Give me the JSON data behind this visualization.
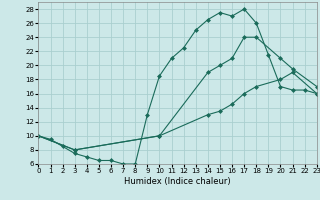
{
  "xlabel": "Humidex (Indice chaleur)",
  "bg_color": "#cce8e8",
  "grid_color": "#aacfcf",
  "line_color": "#1a6b5a",
  "xlim": [
    0,
    23
  ],
  "ylim": [
    6,
    29
  ],
  "xticks": [
    0,
    1,
    2,
    3,
    4,
    5,
    6,
    7,
    8,
    9,
    10,
    11,
    12,
    13,
    14,
    15,
    16,
    17,
    18,
    19,
    20,
    21,
    22,
    23
  ],
  "yticks": [
    6,
    8,
    10,
    12,
    14,
    16,
    18,
    20,
    22,
    24,
    26,
    28
  ],
  "line1_x": [
    0,
    1,
    2,
    3,
    4,
    5,
    6,
    7,
    8,
    9,
    10,
    11,
    12,
    13,
    14,
    15,
    16,
    17,
    18,
    19,
    20,
    21,
    22,
    23
  ],
  "line1_y": [
    10,
    9.5,
    8.5,
    7.5,
    7,
    6.5,
    6.5,
    6,
    6,
    13,
    18.5,
    21,
    22.5,
    25,
    26.5,
    27.5,
    27,
    28,
    26,
    21.5,
    17,
    16.5,
    16.5,
    16
  ],
  "line2_x": [
    0,
    3,
    10,
    14,
    15,
    16,
    17,
    18,
    20,
    21,
    23
  ],
  "line2_y": [
    10,
    8,
    10,
    19,
    20,
    21,
    24,
    24,
    21,
    19.5,
    17
  ],
  "line3_x": [
    0,
    3,
    10,
    14,
    15,
    16,
    17,
    18,
    20,
    21,
    23
  ],
  "line3_y": [
    10,
    8,
    10,
    13,
    13.5,
    14.5,
    16,
    17,
    18,
    19,
    16
  ]
}
